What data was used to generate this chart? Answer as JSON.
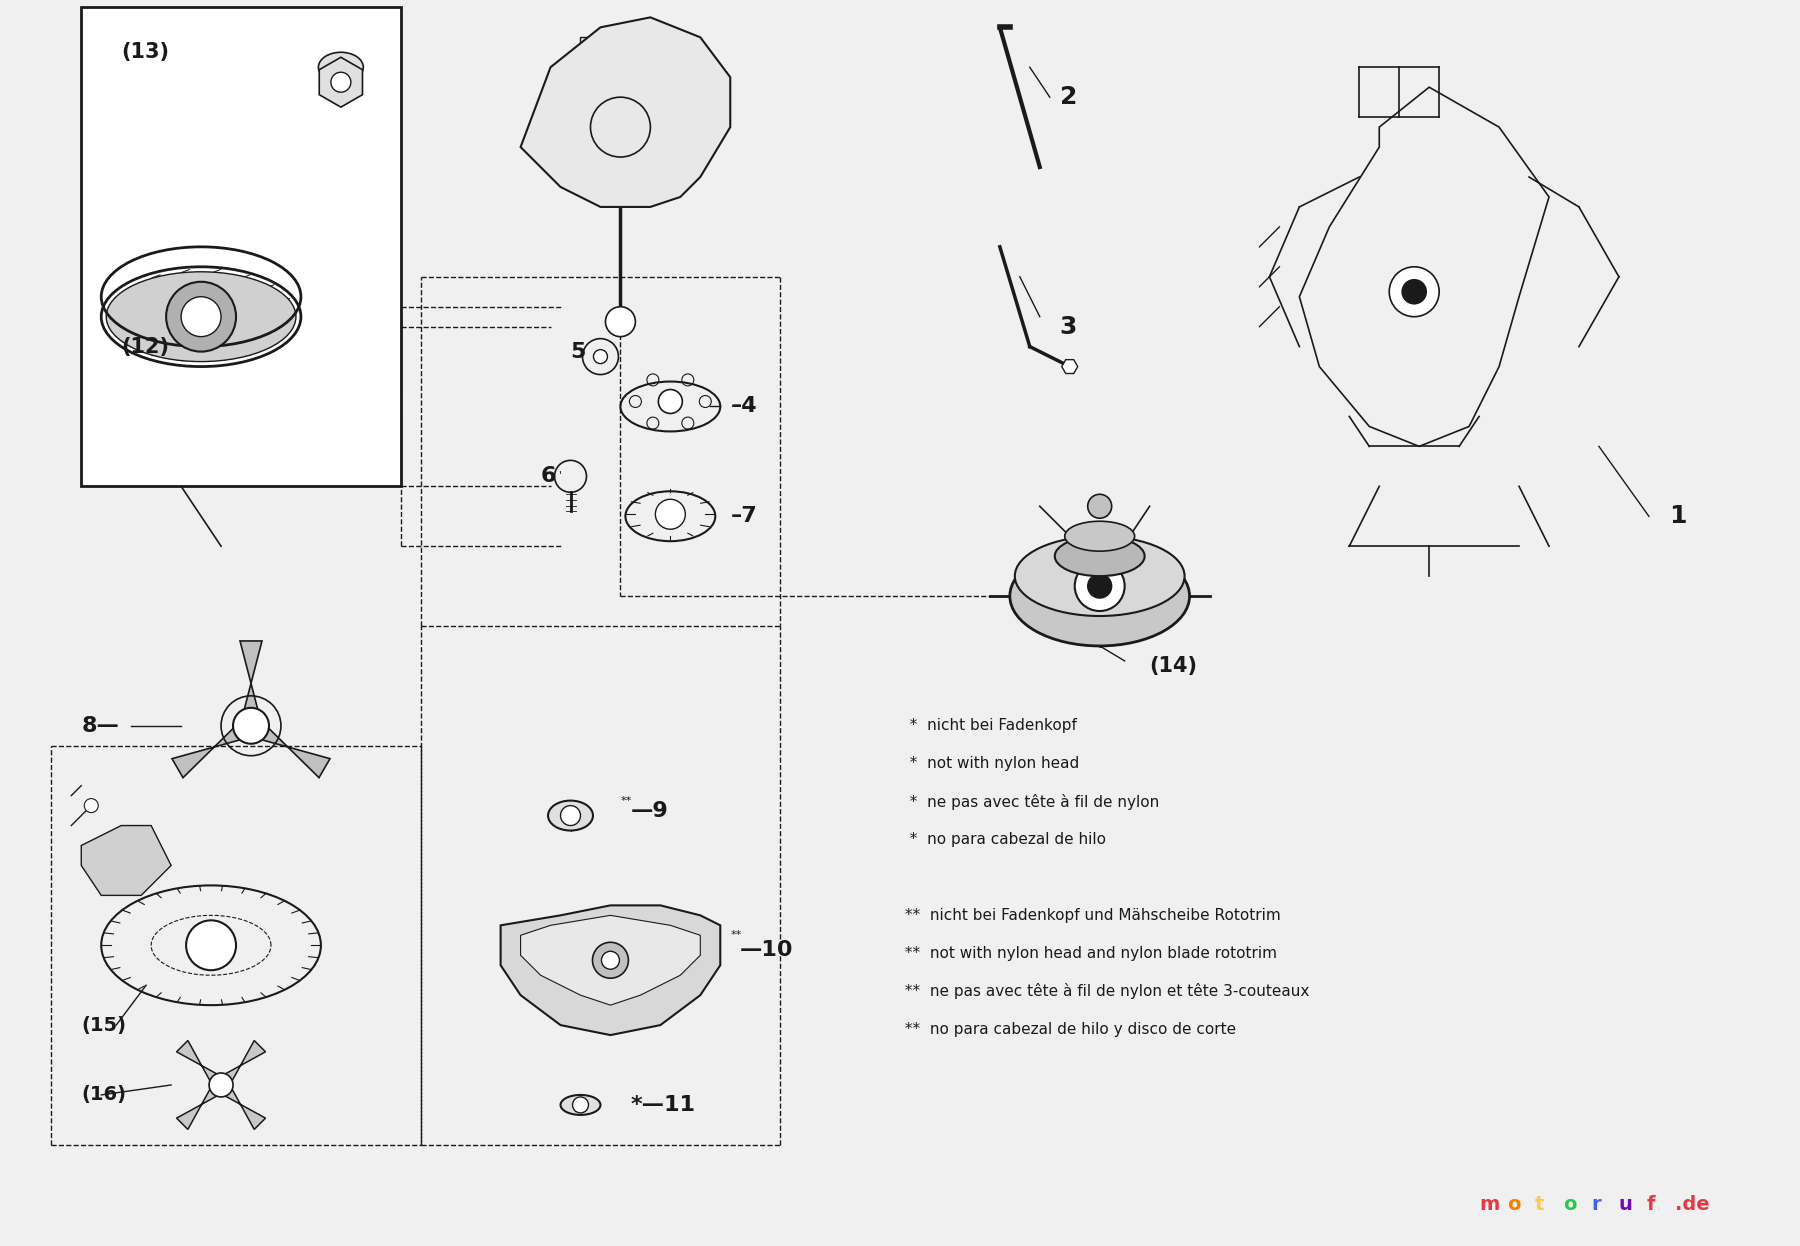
{
  "bg_color": "#f0f0f0",
  "line_color": "#1a1a1a",
  "text_color": "#1a1a1a",
  "box_color": "#ffffff",
  "figsize": [
    18.0,
    12.46
  ],
  "dpi": 100,
  "footnote_lines": [
    "  *  nicht bei Fadenkopf",
    "  *  not with nylon head",
    "  *  ne pas avec tête à fil de nylon",
    "  *  no para cabezal de hilo",
    "",
    " **  nicht bei Fadenkopf und Mähscheibe Rototrim",
    " **  not with nylon head and nylon blade rototrim",
    " **  ne pas avec tête à fil de nylon et tête 3-couteaux",
    " **  no para cabezal de hilo y disco de corte"
  ]
}
